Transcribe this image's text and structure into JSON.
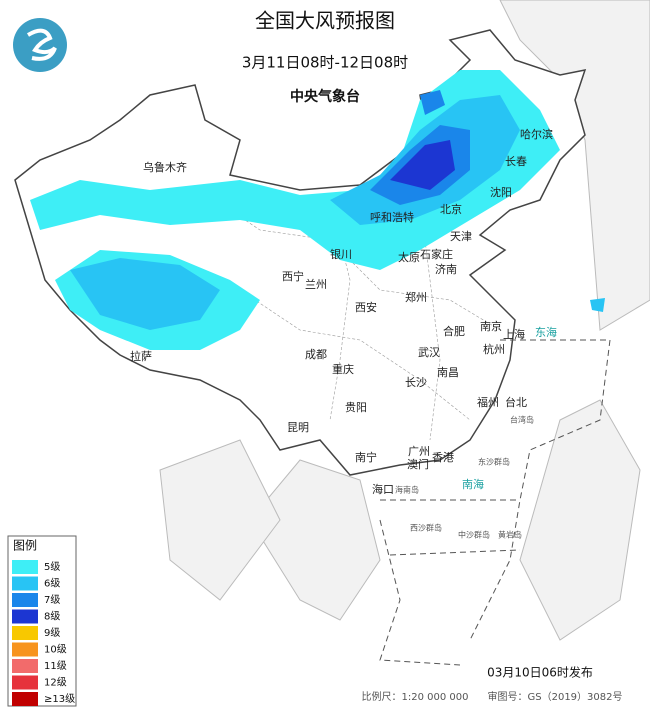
{
  "header": {
    "title": "全国大风预报图",
    "subtitle": "3月11日08时-12日08时",
    "agency": "中央气象台"
  },
  "legend": {
    "title": "图例",
    "items": [
      {
        "label": "5级",
        "color": "#3eeef6"
      },
      {
        "label": "6级",
        "color": "#28c4f4"
      },
      {
        "label": "7级",
        "color": "#1a86ea"
      },
      {
        "label": "8级",
        "color": "#1c36d2"
      },
      {
        "label": "9级",
        "color": "#f8c800"
      },
      {
        "label": "10级",
        "color": "#f7941e"
      },
      {
        "label": "11级",
        "color": "#f26b6b"
      },
      {
        "label": "12级",
        "color": "#e6323c"
      },
      {
        "label": "≥13级",
        "color": "#c00000"
      }
    ]
  },
  "cities": [
    "乌鲁木齐",
    "哈尔滨",
    "长春",
    "沈阳",
    "呼和浩特",
    "北京",
    "天津",
    "石家庄",
    "太原",
    "济南",
    "银川",
    "西宁",
    "兰州",
    "西安",
    "郑州",
    "合肥",
    "南京",
    "上海",
    "杭州",
    "武汉",
    "成都",
    "重庆",
    "拉萨",
    "长沙",
    "南昌",
    "福州",
    "台北",
    "贵阳",
    "昆明",
    "南宁",
    "广州",
    "澳门",
    "香港",
    "海口"
  ],
  "seas": [
    "东海",
    "南海"
  ],
  "islands": [
    "台湾岛",
    "海南岛",
    "东沙群岛",
    "西沙群岛",
    "中沙群岛",
    "黄岩岛"
  ],
  "footer": {
    "issued": "03月10日06时发布",
    "scale": "比例尺：1:20 000 000",
    "approval": "审图号：GS（2019）3082号"
  }
}
